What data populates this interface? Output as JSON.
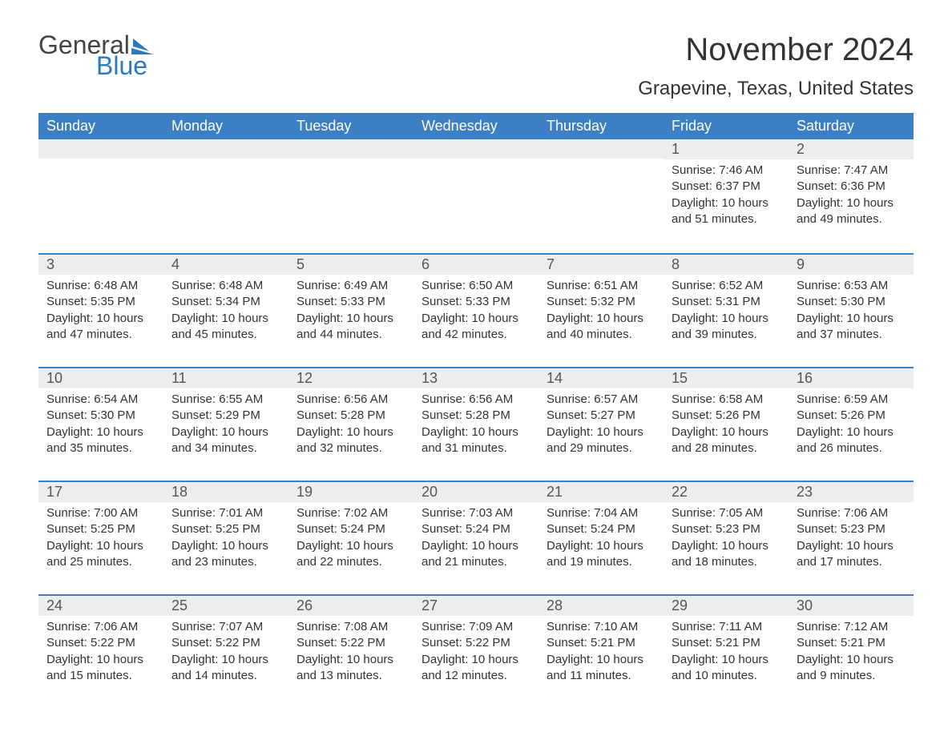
{
  "logo": {
    "text1": "General",
    "text2": "Blue",
    "sail_color": "#2a7ac0"
  },
  "title": "November 2024",
  "location": "Grapevine, Texas, United States",
  "header_bg": "#3b7fc4",
  "header_fg": "#ffffff",
  "daynum_bg": "#ededed",
  "border_color": "#3b7fc4",
  "weekdays": [
    "Sunday",
    "Monday",
    "Tuesday",
    "Wednesday",
    "Thursday",
    "Friday",
    "Saturday"
  ],
  "weeks": [
    [
      null,
      null,
      null,
      null,
      null,
      {
        "n": "1",
        "sunrise": "7:46 AM",
        "sunset": "6:37 PM",
        "daylight": "10 hours and 51 minutes."
      },
      {
        "n": "2",
        "sunrise": "7:47 AM",
        "sunset": "6:36 PM",
        "daylight": "10 hours and 49 minutes."
      }
    ],
    [
      {
        "n": "3",
        "sunrise": "6:48 AM",
        "sunset": "5:35 PM",
        "daylight": "10 hours and 47 minutes."
      },
      {
        "n": "4",
        "sunrise": "6:48 AM",
        "sunset": "5:34 PM",
        "daylight": "10 hours and 45 minutes."
      },
      {
        "n": "5",
        "sunrise": "6:49 AM",
        "sunset": "5:33 PM",
        "daylight": "10 hours and 44 minutes."
      },
      {
        "n": "6",
        "sunrise": "6:50 AM",
        "sunset": "5:33 PM",
        "daylight": "10 hours and 42 minutes."
      },
      {
        "n": "7",
        "sunrise": "6:51 AM",
        "sunset": "5:32 PM",
        "daylight": "10 hours and 40 minutes."
      },
      {
        "n": "8",
        "sunrise": "6:52 AM",
        "sunset": "5:31 PM",
        "daylight": "10 hours and 39 minutes."
      },
      {
        "n": "9",
        "sunrise": "6:53 AM",
        "sunset": "5:30 PM",
        "daylight": "10 hours and 37 minutes."
      }
    ],
    [
      {
        "n": "10",
        "sunrise": "6:54 AM",
        "sunset": "5:30 PM",
        "daylight": "10 hours and 35 minutes."
      },
      {
        "n": "11",
        "sunrise": "6:55 AM",
        "sunset": "5:29 PM",
        "daylight": "10 hours and 34 minutes."
      },
      {
        "n": "12",
        "sunrise": "6:56 AM",
        "sunset": "5:28 PM",
        "daylight": "10 hours and 32 minutes."
      },
      {
        "n": "13",
        "sunrise": "6:56 AM",
        "sunset": "5:28 PM",
        "daylight": "10 hours and 31 minutes."
      },
      {
        "n": "14",
        "sunrise": "6:57 AM",
        "sunset": "5:27 PM",
        "daylight": "10 hours and 29 minutes."
      },
      {
        "n": "15",
        "sunrise": "6:58 AM",
        "sunset": "5:26 PM",
        "daylight": "10 hours and 28 minutes."
      },
      {
        "n": "16",
        "sunrise": "6:59 AM",
        "sunset": "5:26 PM",
        "daylight": "10 hours and 26 minutes."
      }
    ],
    [
      {
        "n": "17",
        "sunrise": "7:00 AM",
        "sunset": "5:25 PM",
        "daylight": "10 hours and 25 minutes."
      },
      {
        "n": "18",
        "sunrise": "7:01 AM",
        "sunset": "5:25 PM",
        "daylight": "10 hours and 23 minutes."
      },
      {
        "n": "19",
        "sunrise": "7:02 AM",
        "sunset": "5:24 PM",
        "daylight": "10 hours and 22 minutes."
      },
      {
        "n": "20",
        "sunrise": "7:03 AM",
        "sunset": "5:24 PM",
        "daylight": "10 hours and 21 minutes."
      },
      {
        "n": "21",
        "sunrise": "7:04 AM",
        "sunset": "5:24 PM",
        "daylight": "10 hours and 19 minutes."
      },
      {
        "n": "22",
        "sunrise": "7:05 AM",
        "sunset": "5:23 PM",
        "daylight": "10 hours and 18 minutes."
      },
      {
        "n": "23",
        "sunrise": "7:06 AM",
        "sunset": "5:23 PM",
        "daylight": "10 hours and 17 minutes."
      }
    ],
    [
      {
        "n": "24",
        "sunrise": "7:06 AM",
        "sunset": "5:22 PM",
        "daylight": "10 hours and 15 minutes."
      },
      {
        "n": "25",
        "sunrise": "7:07 AM",
        "sunset": "5:22 PM",
        "daylight": "10 hours and 14 minutes."
      },
      {
        "n": "26",
        "sunrise": "7:08 AM",
        "sunset": "5:22 PM",
        "daylight": "10 hours and 13 minutes."
      },
      {
        "n": "27",
        "sunrise": "7:09 AM",
        "sunset": "5:22 PM",
        "daylight": "10 hours and 12 minutes."
      },
      {
        "n": "28",
        "sunrise": "7:10 AM",
        "sunset": "5:21 PM",
        "daylight": "10 hours and 11 minutes."
      },
      {
        "n": "29",
        "sunrise": "7:11 AM",
        "sunset": "5:21 PM",
        "daylight": "10 hours and 10 minutes."
      },
      {
        "n": "30",
        "sunrise": "7:12 AM",
        "sunset": "5:21 PM",
        "daylight": "10 hours and 9 minutes."
      }
    ]
  ],
  "labels": {
    "sunrise": "Sunrise: ",
    "sunset": "Sunset: ",
    "daylight": "Daylight: "
  },
  "style": {
    "title_fontsize": 40,
    "location_fontsize": 24,
    "weekday_fontsize": 18,
    "daynum_fontsize": 18,
    "detail_fontsize": 15
  }
}
